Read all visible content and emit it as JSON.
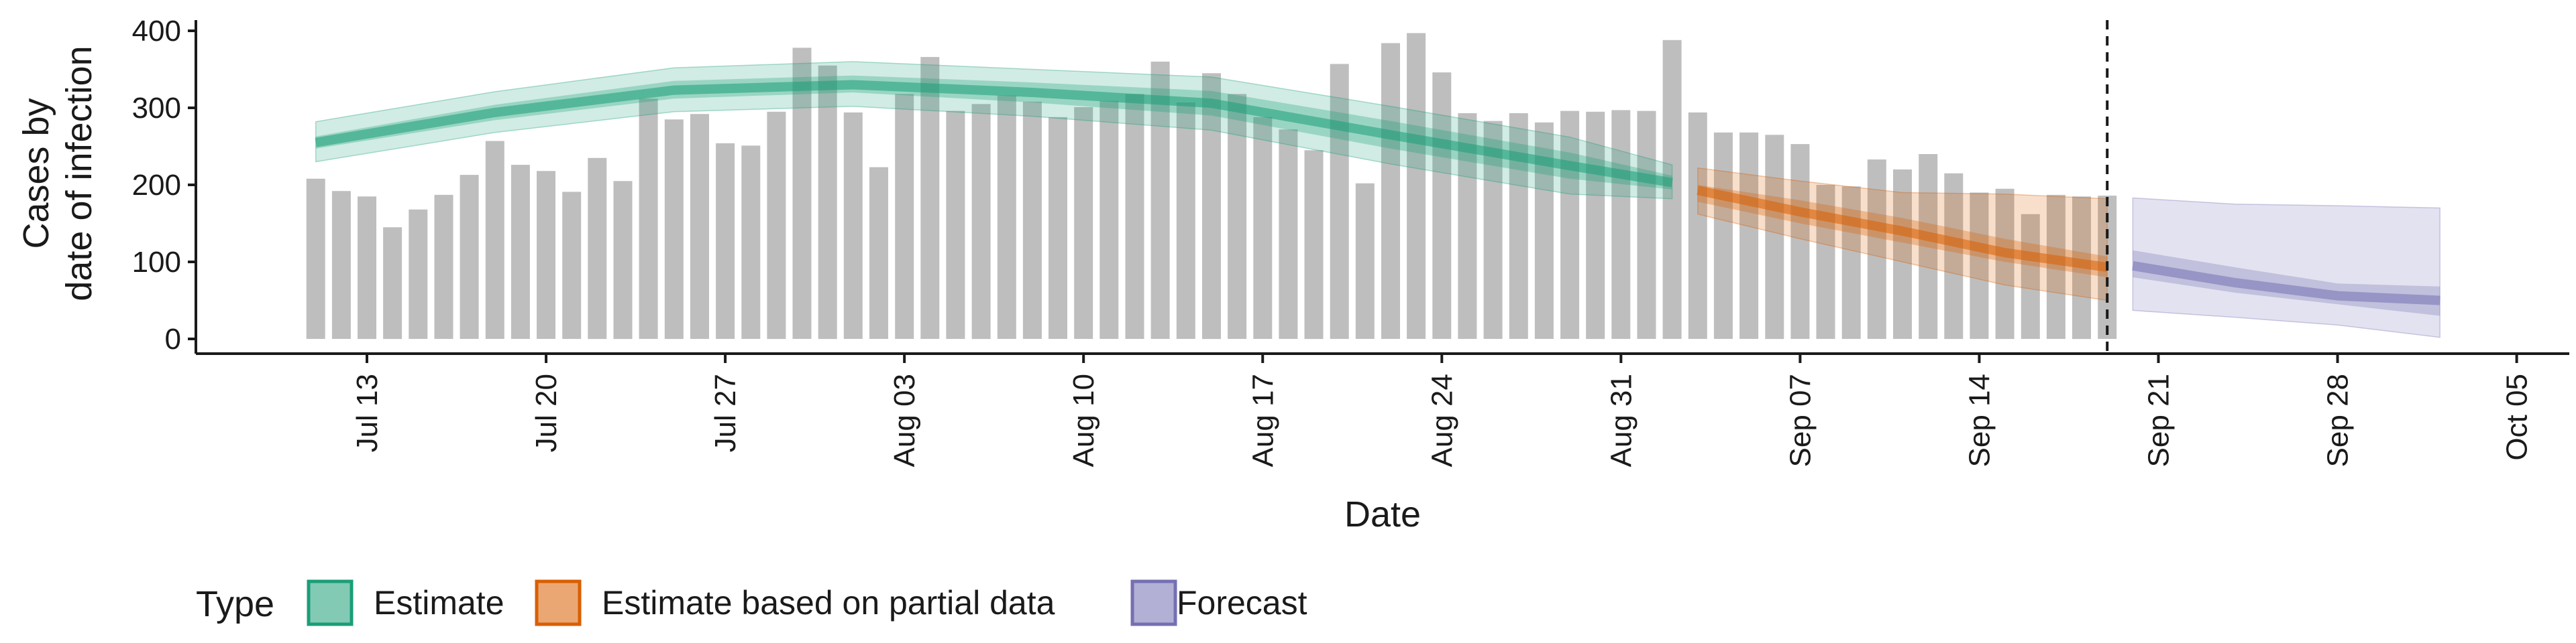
{
  "chart_data": {
    "type": "bar",
    "title": "",
    "xlabel": "Date",
    "ylabel": [
      "Cases by",
      "date of infection"
    ],
    "ylim": [
      0,
      400
    ],
    "y_ticks": [
      0,
      100,
      200,
      300,
      400
    ],
    "x_ticks": [
      "2020-07-13",
      "2020-07-20",
      "2020-07-27",
      "2020-08-03",
      "2020-08-10",
      "2020-08-17",
      "2020-08-24",
      "2020-08-31",
      "2020-09-07",
      "2020-09-14",
      "2020-09-21",
      "2020-09-28",
      "2020-10-05"
    ],
    "x_tick_labels": [
      "Jul 13",
      "Jul 20",
      "Jul 27",
      "Aug 03",
      "Aug 10",
      "Aug 17",
      "Aug 24",
      "Aug 31",
      "Sep 07",
      "Sep 14",
      "Sep 21",
      "Sep 28",
      "Oct 05"
    ],
    "bars": {
      "start_date": "2020-07-11",
      "color": "#bebebe",
      "values": [
        208,
        192,
        185,
        145,
        168,
        187,
        213,
        257,
        226,
        218,
        191,
        235,
        205,
        312,
        285,
        292,
        254,
        251,
        295,
        378,
        355,
        294,
        223,
        318,
        366,
        296,
        305,
        316,
        308,
        288,
        301,
        309,
        318,
        360,
        307,
        345,
        318,
        288,
        272,
        245,
        357,
        202,
        384,
        397,
        346,
        293,
        283,
        293,
        281,
        296,
        295,
        297,
        296,
        388,
        294,
        268,
        268,
        265,
        253,
        200,
        198,
        233,
        220,
        240,
        215,
        190,
        195,
        162,
        187,
        185,
        186
      ]
    },
    "cutoff_date": "2020-09-19",
    "series": [
      {
        "name": "Estimate",
        "color": "#1b9e77",
        "x": [
          "2020-07-11",
          "2020-07-18",
          "2020-07-25",
          "2020-08-01",
          "2020-08-08",
          "2020-08-15",
          "2020-08-22",
          "2020-08-29",
          "2020-09-02"
        ],
        "median": [
          255,
          294,
          323,
          330,
          320,
          306,
          265,
          225,
          203
        ],
        "inner": [
          [
            247,
            263
          ],
          [
            284,
            304
          ],
          [
            312,
            335
          ],
          [
            320,
            342
          ],
          [
            307,
            333
          ],
          [
            290,
            322
          ],
          [
            247,
            283
          ],
          [
            208,
            242
          ],
          [
            194,
            212
          ]
        ],
        "outer": [
          [
            230,
            282
          ],
          [
            268,
            321
          ],
          [
            295,
            352
          ],
          [
            302,
            360
          ],
          [
            289,
            350
          ],
          [
            271,
            340
          ],
          [
            227,
            302
          ],
          [
            188,
            262
          ],
          [
            182,
            226
          ]
        ]
      },
      {
        "name": "Estimate based on partial data",
        "color": "#d95f02",
        "x": [
          "2020-09-03",
          "2020-09-07",
          "2020-09-11",
          "2020-09-15",
          "2020-09-19"
        ],
        "median": [
          193,
          165,
          140,
          112,
          93
        ],
        "inner": [
          [
            178,
            200
          ],
          [
            150,
            180
          ],
          [
            125,
            157
          ],
          [
            100,
            130
          ],
          [
            80,
            107
          ]
        ],
        "outer": [
          [
            162,
            222
          ],
          [
            130,
            205
          ],
          [
            100,
            190
          ],
          [
            70,
            188
          ],
          [
            50,
            182
          ]
        ]
      },
      {
        "name": "Forecast",
        "color": "#7570b3",
        "x": [
          "2020-09-20",
          "2020-09-24",
          "2020-09-28",
          "2020-10-02"
        ],
        "median": [
          95,
          73,
          56,
          50
        ],
        "inner": [
          [
            80,
            115
          ],
          [
            60,
            93
          ],
          [
            45,
            72
          ],
          [
            30,
            68
          ]
        ],
        "outer": [
          [
            37,
            183
          ],
          [
            28,
            175
          ],
          [
            18,
            173
          ],
          [
            2,
            170
          ]
        ]
      }
    ],
    "legend": {
      "title": "Type",
      "position": "bottom-left",
      "items": [
        "Estimate",
        "Estimate based on partial data",
        "Forecast"
      ]
    },
    "grid": false
  }
}
